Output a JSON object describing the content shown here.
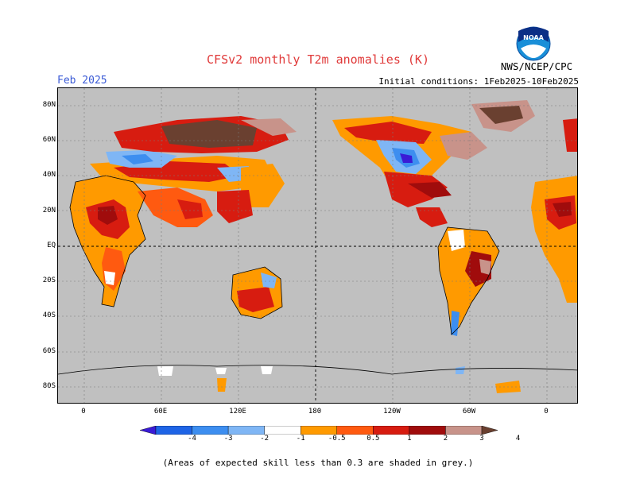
{
  "header": {
    "title": "CFSv2 monthly T2m anomalies (K)",
    "month": "Feb 2025",
    "initial_conditions": "Initial conditions: 1Feb2025-10Feb2025",
    "agency": "NWS/NCEP/CPC",
    "logo_text": "NOAA"
  },
  "axes": {
    "lat_labels": [
      "80N",
      "60N",
      "40N",
      "20N",
      "EQ",
      "20S",
      "40S",
      "60S",
      "80S"
    ],
    "lon_labels": [
      "0",
      "60E",
      "120E",
      "180",
      "120W",
      "60W",
      "0"
    ]
  },
  "colorbar": {
    "labels": [
      "-4",
      "-3",
      "-2",
      "-1",
      "-0.5",
      "0.5",
      "1",
      "2",
      "3",
      "4"
    ],
    "colors": [
      "#3a1bd6",
      "#1e64e6",
      "#3d8ef0",
      "#7fb6f5",
      "#ffffff",
      "#ff9a00",
      "#ff5a10",
      "#d71c10",
      "#a00c0c",
      "#c8938a",
      "#6a4030"
    ]
  },
  "footer": {
    "note": "(Areas of expected skill less than 0.3 are shaded in grey.)"
  }
}
